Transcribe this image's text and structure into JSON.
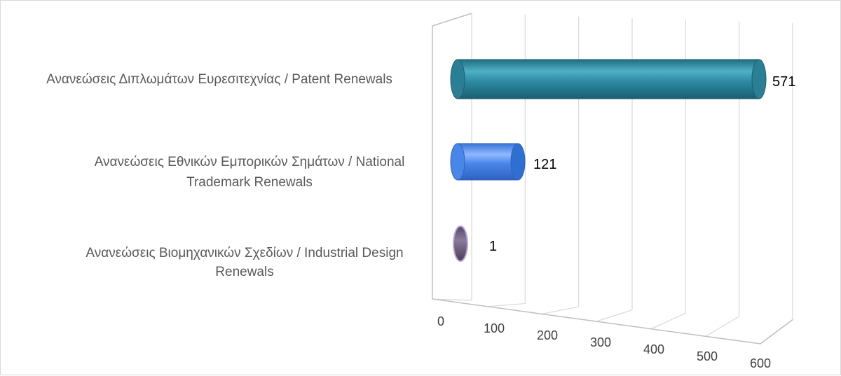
{
  "chart_data": {
    "type": "bar",
    "orientation": "horizontal",
    "style": "3d-cylinder",
    "categories": [
      "Ανανεώσεις Διπλωμάτων Ευρεσιτεχνίας / Patent Renewals",
      "Ανανεώσεις Εθνικών Εμπορικών Σημάτων / National Trademark Renewals",
      "Ανανεώσεις Βιομηχανικών Σχεδίων  / Industrial Design Renewals"
    ],
    "category_lines": [
      [
        "Ανανεώσεις Διπλωμάτων Ευρεσιτεχνίας / Patent Renewals"
      ],
      [
        "Ανανεώσεις Εθνικών Εμπορικών Σημάτων / National",
        "Trademark Renewals"
      ],
      [
        "Ανανεώσεις Βιομηχανικών Σχεδίων  / Industrial Design",
        "Renewals"
      ]
    ],
    "values": [
      571,
      121,
      1
    ],
    "value_labels": [
      "571",
      "121",
      "1"
    ],
    "colors": [
      "#2e8ba3",
      "#4a86e8",
      "#6b5a7e"
    ],
    "xlim": [
      0,
      600
    ],
    "xticks": [
      0,
      100,
      200,
      300,
      400,
      500,
      600
    ],
    "xtick_labels": [
      "0",
      "100",
      "200",
      "300",
      "400",
      "500",
      "600"
    ],
    "grid": true,
    "legend": "none",
    "title": ""
  }
}
